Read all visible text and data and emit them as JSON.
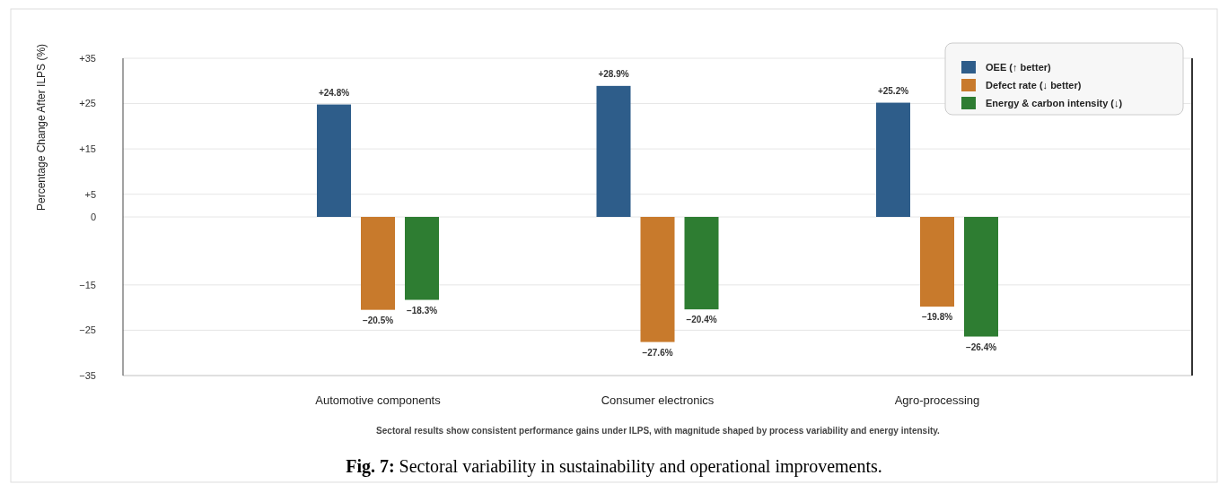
{
  "chart_data": {
    "type": "bar",
    "title": "Fig. 7: Sectoral variability in sustainability and operational improvements.",
    "ylabel": "Percentage Change After ILPS (%)",
    "annotations": [
      "Sectoral results show consistent performance gains under ILPS, with magnitude shaped by process variability and energy intensity."
    ],
    "categories": [
      "Automotive components",
      "Consumer electronics",
      "Agro-processing"
    ],
    "series": [
      {
        "name": "OEE (↑ better)",
        "color": "#2e5d8a",
        "values": [
          24.8,
          28.9,
          25.2
        ],
        "value_labels": [
          "+24.8%",
          "+28.9%",
          "+25.2%"
        ]
      },
      {
        "name": "Defect rate (↓ better)",
        "color": "#c87a2c",
        "values": [
          -20.5,
          -27.6,
          -19.8
        ],
        "value_labels": [
          "−20.5%",
          "−27.6%",
          "−19.8%"
        ]
      },
      {
        "name": "Energy & carbon intensity (↓)",
        "color": "#2e7d32",
        "values": [
          -18.3,
          -20.4,
          -26.4
        ],
        "value_labels": [
          "−18.3%",
          "−20.4%",
          "−26.4%"
        ]
      }
    ],
    "ylim": [
      -35,
      35
    ],
    "yticks": [
      {
        "value": 35,
        "label": "+35"
      },
      {
        "value": 25,
        "label": "+25"
      },
      {
        "value": 15,
        "label": "+15"
      },
      {
        "value": 5,
        "label": "+5"
      },
      0,
      {
        "value": -15,
        "label": "−15"
      },
      {
        "value": -25,
        "label": "−25"
      },
      {
        "value": -35,
        "label": "−35"
      }
    ],
    "grid": "y",
    "legend": "top right"
  }
}
